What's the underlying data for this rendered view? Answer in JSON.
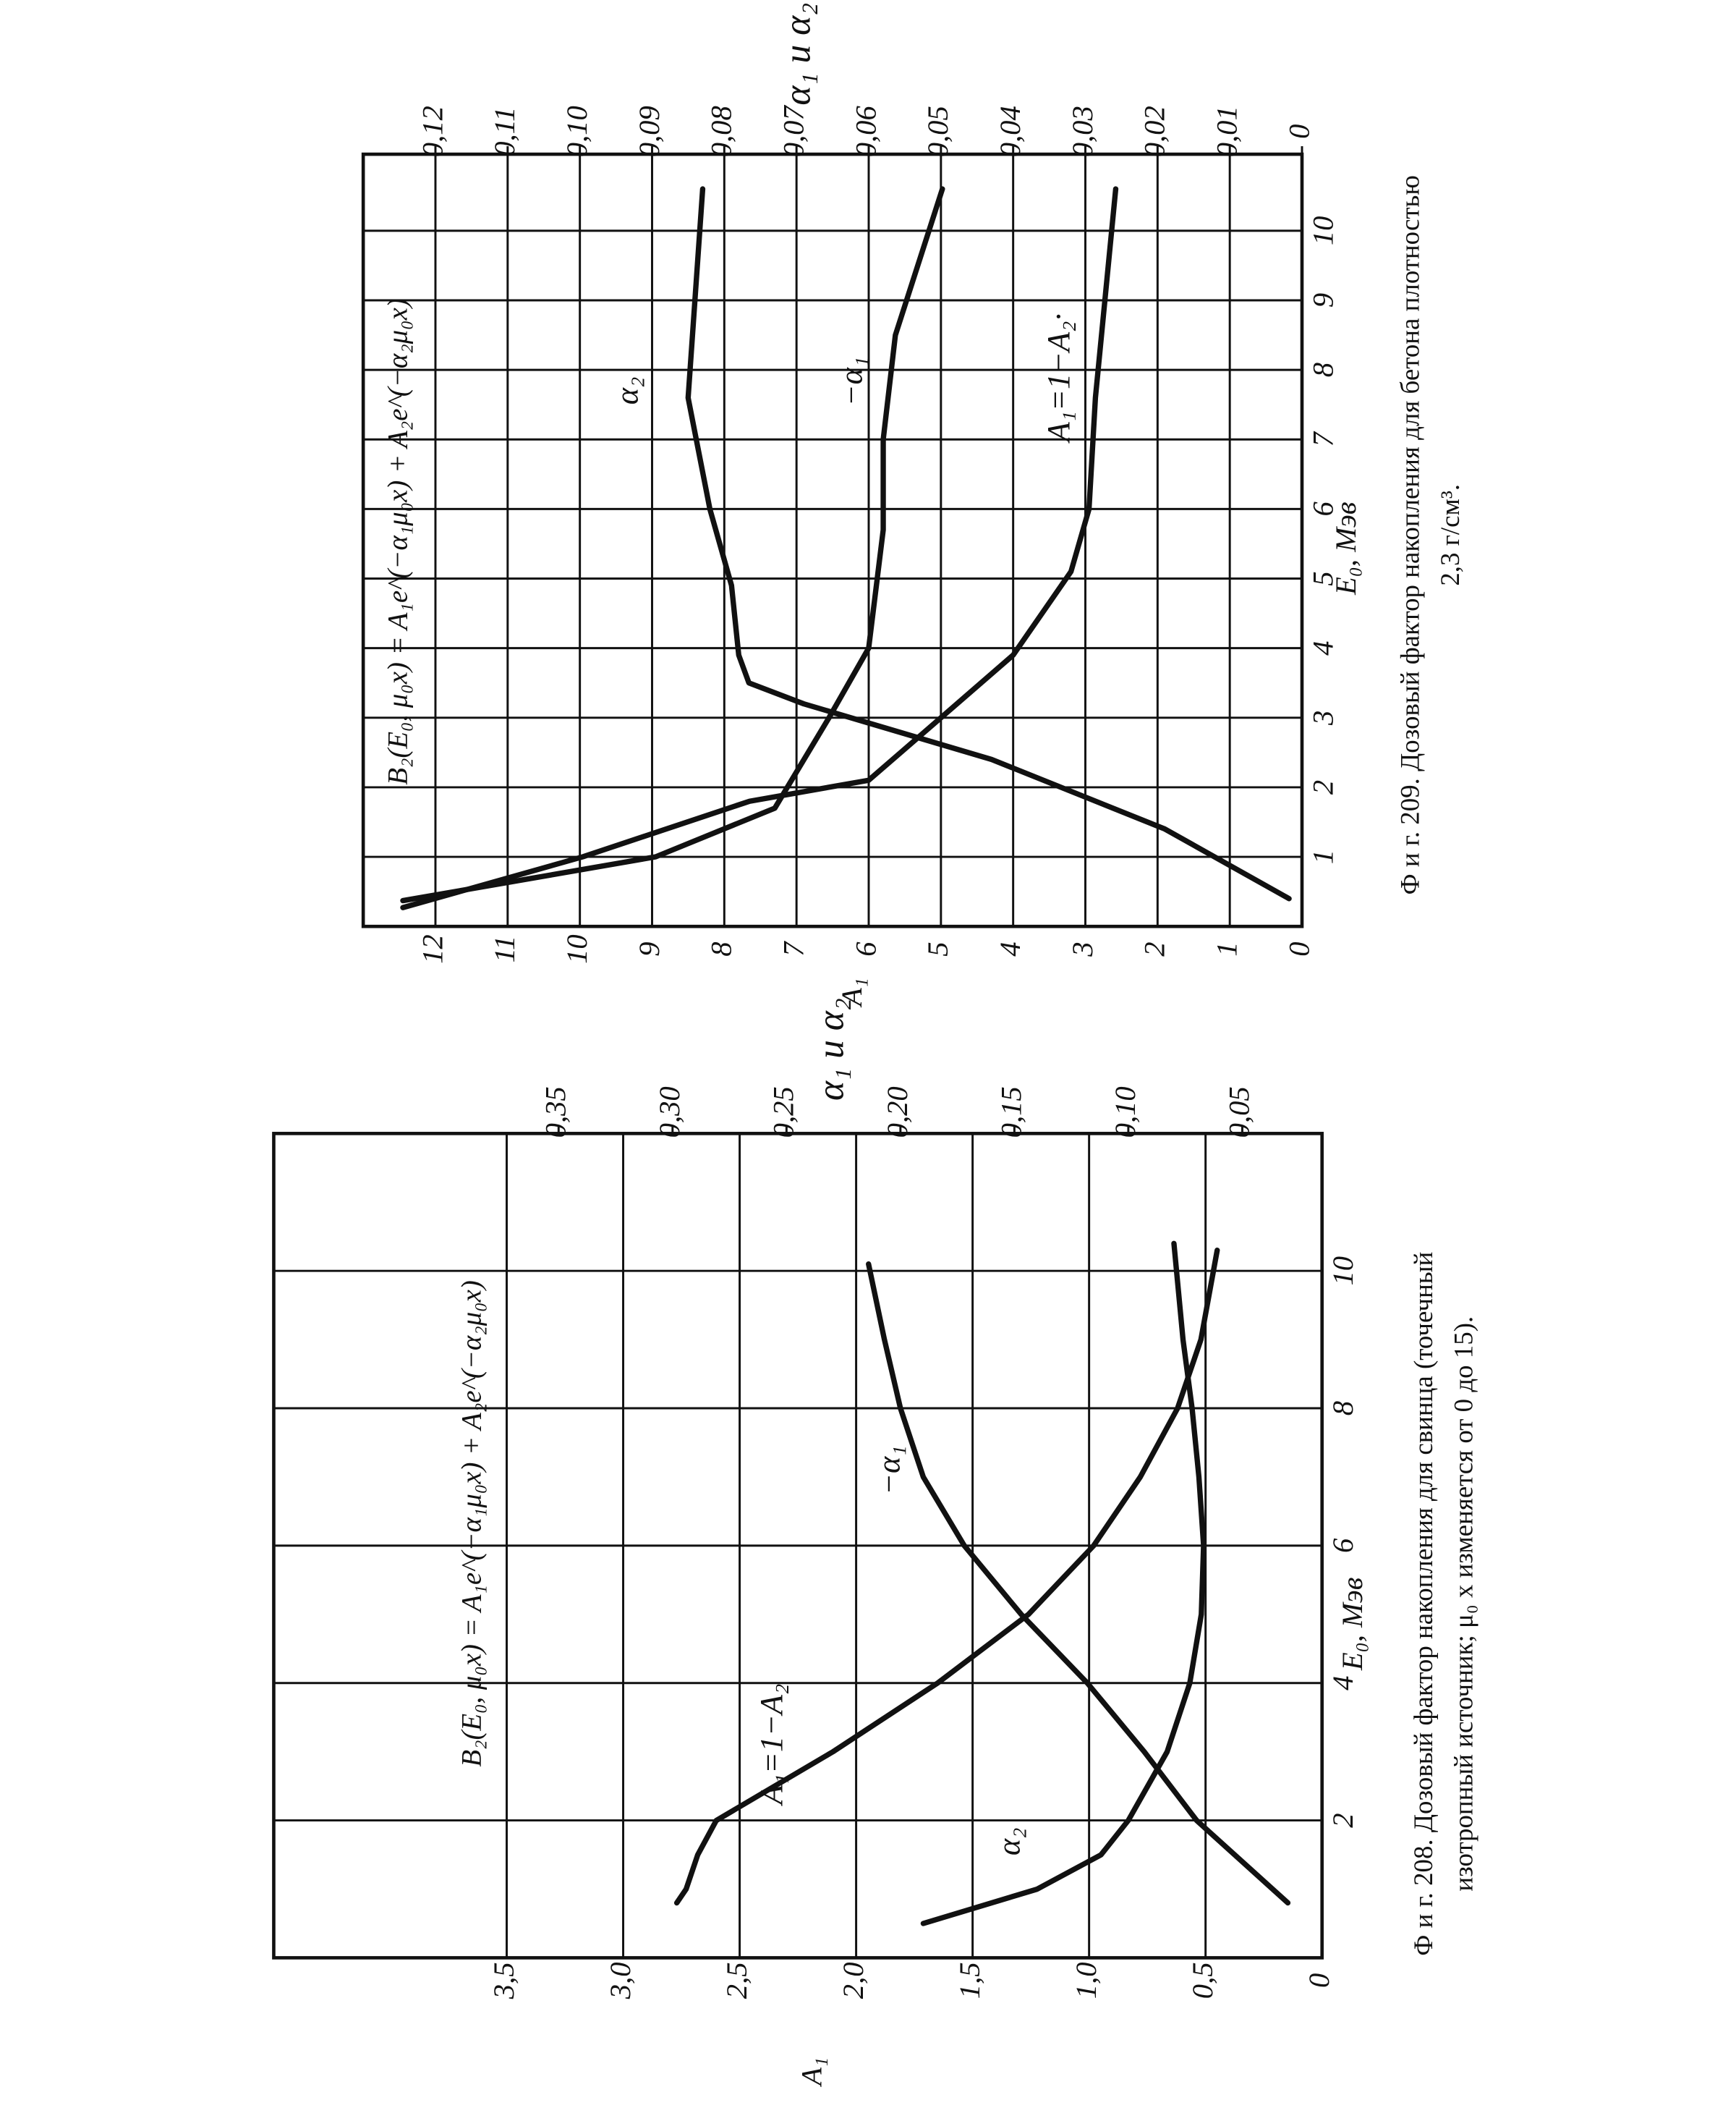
{
  "chart_data": [
    {
      "type": "line",
      "caption": [
        "Ф и г. 208. Дозовый фактор накопления для свинца (точечный",
        "изотропный источник; μ₀ x изменяется от 0 до 15)."
      ],
      "annotation": "B₂(E₀, μ₀x) = A₁e^(−α₁μ₀x) + A₂e^(−α₂μ₀x)",
      "xlabel": "E₀, Мэв",
      "ylabel": "A₁",
      "y2label": "α₁ и α₂",
      "xlim": [
        0,
        12
      ],
      "xticks": [
        2,
        4,
        6,
        8,
        10
      ],
      "ylim": [
        0,
        4.5
      ],
      "yticks": [
        0,
        {
          "value": 0.5,
          "label": "0,5"
        },
        {
          "value": 1,
          "label": "1,0"
        },
        {
          "value": 1.5,
          "label": "1,5"
        },
        {
          "value": 2,
          "label": "2,0"
        },
        {
          "value": 2.5,
          "label": "2,5"
        },
        {
          "value": 3,
          "label": "3,0"
        },
        {
          "value": 3.5,
          "label": "3,5"
        }
      ],
      "y2lim": [
        0.015,
        0.475
      ],
      "y2ticks": [
        {
          "value": 0.05,
          "label": "0,05"
        },
        {
          "value": 0.1,
          "label": "0,10"
        },
        {
          "value": 0.15,
          "label": "0,15"
        },
        {
          "value": 0.2,
          "label": "0,20"
        },
        {
          "value": 0.25,
          "label": "0,25"
        },
        {
          "value": 0.3,
          "label": "0,30"
        },
        {
          "value": 0.35,
          "label": "0,35"
        }
      ],
      "grid": true,
      "series": [
        {
          "name": "A₁=1−A₂",
          "color": "#111111",
          "x": [
            0.8,
            1.0,
            1.5,
            2,
            3,
            4,
            5,
            6,
            7,
            8,
            9,
            10.3
          ],
          "values": [
            2.77,
            2.73,
            2.68,
            2.6,
            2.1,
            1.65,
            1.26,
            0.98,
            0.78,
            0.62,
            0.52,
            0.45
          ]
        },
        {
          "name": "−α₁",
          "color": "#111111",
          "axis": "y2",
          "x": [
            0.8,
            2,
            3,
            4,
            5,
            6,
            7,
            8,
            9,
            10.1
          ],
          "values": [
            0.03,
            0.07,
            0.093,
            0.118,
            0.147,
            0.172,
            0.19,
            0.2,
            0.207,
            0.214
          ]
        },
        {
          "name": "α₂",
          "color": "#111111",
          "axis": "y2",
          "x": [
            0.5,
            1,
            1.5,
            2,
            3,
            4,
            5,
            6,
            7,
            8,
            9,
            10.4
          ],
          "values": [
            0.19,
            0.14,
            0.112,
            0.1,
            0.083,
            0.073,
            0.068,
            0.067,
            0.069,
            0.072,
            0.076,
            0.08
          ]
        }
      ]
    },
    {
      "type": "line",
      "caption": [
        "Ф и г. 209. Дозовый фактор накопления для бетона плотностью",
        "2,3 г/см³."
      ],
      "annotation": "B₂(E₀, μ₀x) = A₁e^(−α₁μ₀x) + A₂e^(−α₂μ₀x)",
      "xlabel": "E₀, Мэв",
      "ylabel": "A₁",
      "y2label": "α₁ и α₂",
      "xlim": [
        0,
        11.1
      ],
      "xticks": [
        1,
        2,
        3,
        4,
        5,
        6,
        7,
        8,
        9,
        10
      ],
      "ylim": [
        0,
        13
      ],
      "yticks": [
        0,
        1,
        2,
        3,
        4,
        5,
        6,
        7,
        8,
        9,
        10,
        11,
        12
      ],
      "y2lim": [
        0,
        0.13
      ],
      "y2ticks": [
        0,
        {
          "value": 0.01,
          "label": "0,01"
        },
        {
          "value": 0.02,
          "label": "0,02"
        },
        {
          "value": 0.03,
          "label": "0,03"
        },
        {
          "value": 0.04,
          "label": "0,04"
        },
        {
          "value": 0.05,
          "label": "0,05"
        },
        {
          "value": 0.06,
          "label": "0,06"
        },
        {
          "value": 0.07,
          "label": "0,07"
        },
        {
          "value": 0.08,
          "label": "0,08"
        },
        {
          "value": 0.09,
          "label": "0,09"
        },
        {
          "value": 0.1,
          "label": "0,10"
        },
        {
          "value": 0.11,
          "label": "0,11"
        },
        {
          "value": 0.12,
          "label": "0,12"
        }
      ],
      "grid": true,
      "series": [
        {
          "name": "A₁=1−A₂·",
          "color": "#111111",
          "x": [
            0.27,
            1,
            1.8,
            2.1,
            3,
            3.9,
            5.1,
            6,
            7.6,
            10.6
          ],
          "values": [
            12.45,
            9.96,
            7.65,
            6.0,
            5.0,
            4.0,
            3.2,
            2.95,
            2.86,
            2.58
          ]
        },
        {
          "name": "−α₁",
          "color": "#111111",
          "axis": "y2",
          "x": [
            0.37,
            1,
            1.7,
            3,
            4,
            5.7,
            7,
            8.5,
            10.6
          ],
          "values": [
            0.1245,
            0.0895,
            0.073,
            0.0655,
            0.06,
            0.058,
            0.058,
            0.0563,
            0.0498
          ]
        },
        {
          "name": "α₂",
          "color": "#111111",
          "axis": "y2",
          "x": [
            0.4,
            1.4,
            2.4,
            3.2,
            3.5,
            3.9,
            4.9,
            6,
            7.6,
            10.6
          ],
          "values": [
            0.0018,
            0.019,
            0.043,
            0.069,
            0.0766,
            0.078,
            0.079,
            0.082,
            0.085,
            0.083
          ]
        }
      ]
    }
  ]
}
